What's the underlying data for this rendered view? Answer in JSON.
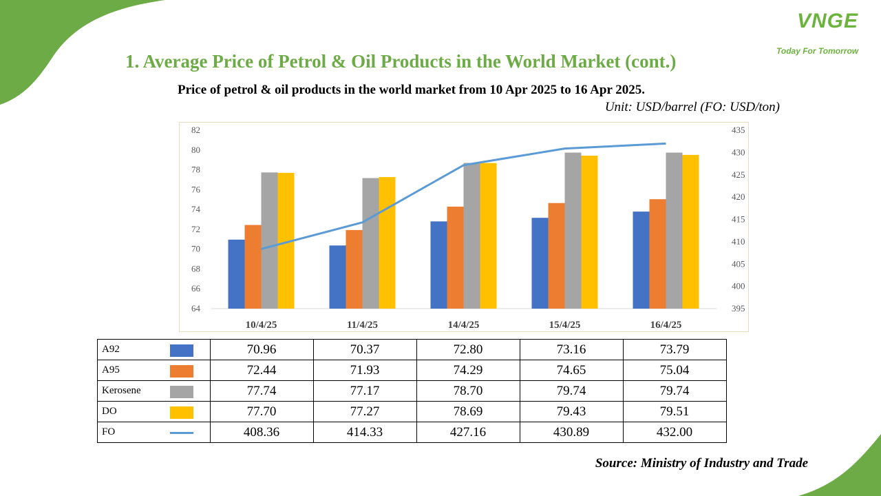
{
  "header": {
    "title": "1. Average Price of Petrol & Oil Products in the World Market (cont.)",
    "subtitle": "Price of petrol & oil products in the world market from 10 Apr 2025 to 16 Apr 2025.",
    "unit": "Unit:  USD/barrel (FO: USD/ton)"
  },
  "logo": {
    "mark": "VNGE",
    "tagline": "Today For Tomorrow"
  },
  "source": "Source: Ministry of Industry and Trade",
  "colors": {
    "accent_green": "#6cab45",
    "A92": "#4472c4",
    "A95": "#ed7d31",
    "Kerosene": "#a5a5a5",
    "DO": "#ffc000",
    "FO": "#5b9bd5"
  },
  "chart_data": {
    "type": "bar",
    "categories": [
      "10/4/25",
      "11/4/25",
      "14/4/25",
      "15/4/25",
      "16/4/25"
    ],
    "series": [
      {
        "name": "A92",
        "type": "bar",
        "axis": "left",
        "color": "#4472c4",
        "values": [
          70.96,
          70.37,
          72.8,
          73.16,
          73.79
        ]
      },
      {
        "name": "A95",
        "type": "bar",
        "axis": "left",
        "color": "#ed7d31",
        "values": [
          72.44,
          71.93,
          74.29,
          74.65,
          75.04
        ]
      },
      {
        "name": "Kerosene",
        "type": "bar",
        "axis": "left",
        "color": "#a5a5a5",
        "values": [
          77.74,
          77.17,
          78.7,
          79.74,
          79.74
        ]
      },
      {
        "name": "DO",
        "type": "bar",
        "axis": "left",
        "color": "#ffc000",
        "values": [
          77.7,
          77.27,
          78.69,
          79.43,
          79.51
        ]
      },
      {
        "name": "FO",
        "type": "line",
        "axis": "right",
        "color": "#5b9bd5",
        "values": [
          408.36,
          414.33,
          427.16,
          430.89,
          432.0
        ]
      }
    ],
    "y_left": {
      "min": 64,
      "max": 82,
      "step": 2
    },
    "y_right": {
      "min": 395,
      "max": 435,
      "step": 5
    },
    "grid": false,
    "legend": "data-table-below"
  },
  "table": {
    "rows": [
      {
        "name": "A92",
        "key": "bar",
        "color": "#4472c4",
        "values": [
          "70.96",
          "70.37",
          "72.80",
          "73.16",
          "73.79"
        ]
      },
      {
        "name": "A95",
        "key": "bar",
        "color": "#ed7d31",
        "values": [
          "72.44",
          "71.93",
          "74.29",
          "74.65",
          "75.04"
        ]
      },
      {
        "name": "Kerosene",
        "key": "bar",
        "color": "#a5a5a5",
        "values": [
          "77.74",
          "77.17",
          "78.70",
          "79.74",
          "79.74"
        ]
      },
      {
        "name": "DO",
        "key": "bar",
        "color": "#ffc000",
        "values": [
          "77.70",
          "77.27",
          "78.69",
          "79.43",
          "79.51"
        ]
      },
      {
        "name": "FO",
        "key": "line",
        "color": "#5b9bd5",
        "values": [
          "408.36",
          "414.33",
          "427.16",
          "430.89",
          "432.00"
        ]
      }
    ]
  }
}
